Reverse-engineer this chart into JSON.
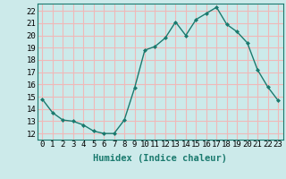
{
  "xlabel": "Humidex (Indice chaleur)",
  "x_values": [
    0,
    1,
    2,
    3,
    4,
    5,
    6,
    7,
    8,
    9,
    10,
    11,
    12,
    13,
    14,
    15,
    16,
    17,
    18,
    19,
    20,
    21,
    22,
    23
  ],
  "y_values": [
    14.8,
    13.7,
    13.1,
    13.0,
    12.7,
    12.2,
    12.0,
    12.0,
    13.1,
    15.7,
    18.8,
    19.1,
    19.8,
    21.1,
    20.0,
    21.3,
    21.8,
    22.3,
    20.9,
    20.3,
    19.4,
    17.2,
    15.8,
    14.7
  ],
  "ylim": [
    11.5,
    22.6
  ],
  "yticks": [
    12,
    13,
    14,
    15,
    16,
    17,
    18,
    19,
    20,
    21,
    22
  ],
  "line_color": "#1a7a6e",
  "marker": "D",
  "marker_size": 2.0,
  "bg_color": "#cceaea",
  "grid_color": "#f0b8b8",
  "tick_label_fontsize": 6.5,
  "xlabel_fontsize": 7.5,
  "line_width": 1.0
}
